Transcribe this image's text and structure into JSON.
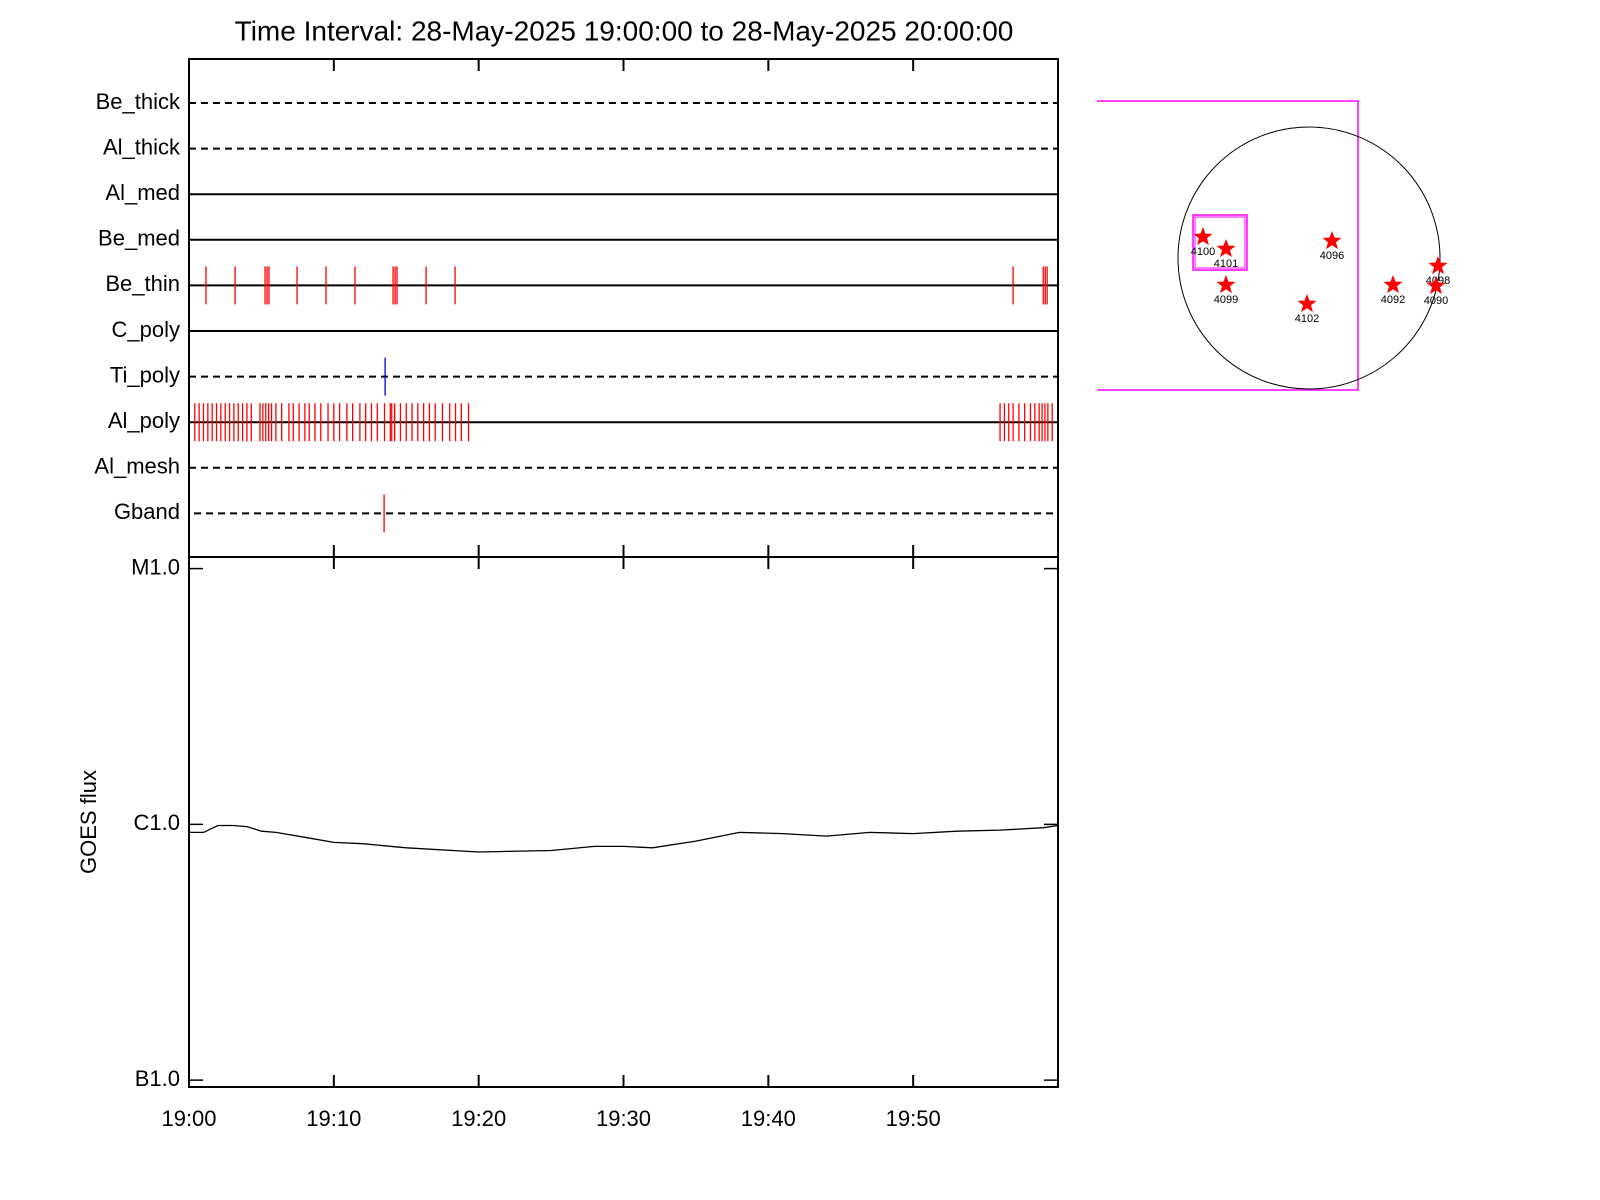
{
  "chart_data": [
    {
      "type": "timeline",
      "title": "Time Interval: 28-May-2025 19:00:00 to 28-May-2025 20:00:00",
      "rows": [
        {
          "name": "Be_thick",
          "style": "dashed",
          "events": []
        },
        {
          "name": "Al_thick",
          "style": "dashed",
          "events": []
        },
        {
          "name": "Al_med",
          "style": "solid",
          "events": []
        },
        {
          "name": "Be_med",
          "style": "solid",
          "events": []
        },
        {
          "name": "Be_thin",
          "style": "solid",
          "color": "#ff0000",
          "events": [
            1.17,
            3.18,
            5.25,
            5.39,
            5.52,
            7.46,
            9.46,
            11.46,
            14.09,
            14.23,
            14.36,
            16.37,
            18.37,
            56.9,
            58.98,
            59.12,
            59.25
          ]
        },
        {
          "name": "C_poly",
          "style": "solid",
          "events": []
        },
        {
          "name": "Ti_poly",
          "style": "dashed",
          "color": "#0000cc",
          "events": [
            13.54
          ]
        },
        {
          "name": "Al_poly",
          "style": "solid",
          "color": "#ff0000",
          "events": [
            0.4,
            0.7,
            1.0,
            1.3,
            1.6,
            1.9,
            2.2,
            2.5,
            2.8,
            3.1,
            3.4,
            3.7,
            4.0,
            4.3,
            4.9,
            5.1,
            5.3,
            5.5,
            5.7,
            6.0,
            6.4,
            6.9,
            7.2,
            7.6,
            8.0,
            8.3,
            8.7,
            9.1,
            9.6,
            10.0,
            10.4,
            10.9,
            11.3,
            11.8,
            12.2,
            12.6,
            13.0,
            13.5,
            13.9,
            14.0,
            14.2,
            14.6,
            15.0,
            15.4,
            15.8,
            16.2,
            16.6,
            17.0,
            17.5,
            18.0,
            18.4,
            18.8,
            19.3,
            56.0,
            56.3,
            56.6,
            56.9,
            57.3,
            57.7,
            58.1,
            58.4,
            58.7,
            58.9,
            59.1,
            59.3,
            59.6
          ]
        },
        {
          "name": "Al_mesh",
          "style": "dashed",
          "events": []
        },
        {
          "name": "Gband",
          "style": "dashed",
          "color": "#ff0000",
          "events": [
            13.47
          ]
        }
      ]
    },
    {
      "type": "line",
      "ylabel": "GOES flux",
      "log_y": true,
      "color": "#000000",
      "x": [
        0,
        1,
        2,
        3,
        4,
        5,
        6,
        8,
        10,
        12,
        15,
        20,
        25,
        28,
        30,
        32,
        35,
        38,
        41,
        44,
        47,
        50,
        53,
        56,
        59,
        60
      ],
      "values": [
        9.3e-07,
        9.3e-07,
        9.9e-07,
        9.9e-07,
        9.8e-07,
        9.4e-07,
        9.3e-07,
        8.9e-07,
        8.5e-07,
        8.4e-07,
        8.1e-07,
        7.8e-07,
        7.9e-07,
        8.2e-07,
        8.2e-07,
        8.1e-07,
        8.6e-07,
        9.3e-07,
        9.2e-07,
        9e-07,
        9.3e-07,
        9.2e-07,
        9.4e-07,
        9.5e-07,
        9.7e-07,
        9.9e-07
      ],
      "xlim": [
        0,
        60
      ],
      "xticks": [
        {
          "value": 0,
          "label": "19:00"
        },
        {
          "value": 10,
          "label": "19:10"
        },
        {
          "value": 20,
          "label": "19:20"
        },
        {
          "value": 30,
          "label": "19:30"
        },
        {
          "value": 40,
          "label": "19:40"
        },
        {
          "value": 50,
          "label": "19:50"
        }
      ],
      "ylim": [
        9.4e-08,
        1.11e-05
      ],
      "yticks": [
        {
          "value": 1e-07,
          "label": "B1.0"
        },
        {
          "value": 1e-06,
          "label": "C1.0"
        },
        {
          "value": 1e-05,
          "label": "M1.0"
        }
      ]
    },
    {
      "type": "disk",
      "regions": [
        "4100",
        "4101",
        "4096",
        "4099",
        "4102",
        "4092",
        "4098",
        "4090"
      ]
    }
  ]
}
